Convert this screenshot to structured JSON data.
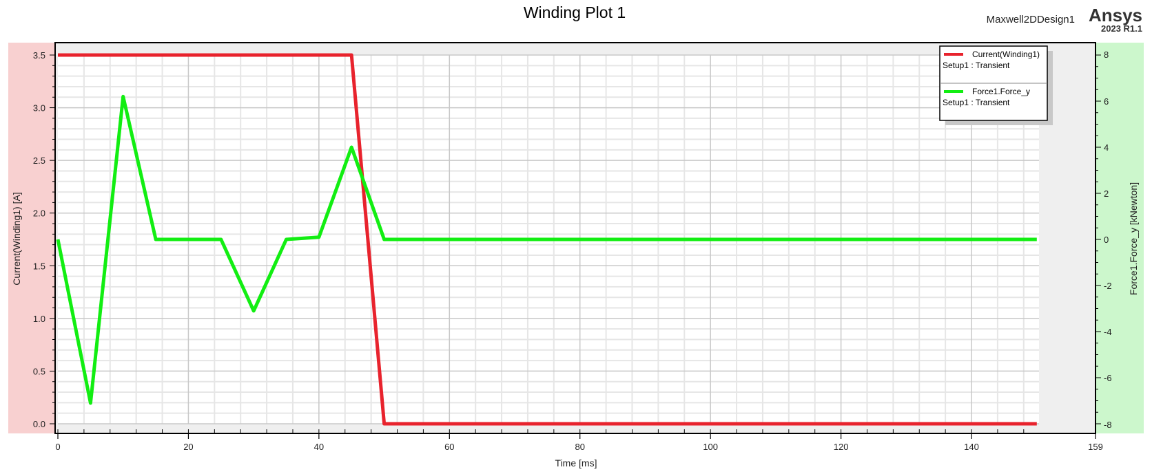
{
  "header": {
    "title": "Winding Plot 1",
    "design_name": "Maxwell2DDesign1",
    "brand": "Ansys",
    "version": "2023 R1.1"
  },
  "colors": {
    "current": "#e8232d",
    "force": "#12ee12",
    "left_band": "#f8d0d0",
    "right_band": "#ccf7cc"
  },
  "chart_data": {
    "type": "line",
    "xlabel": "Time [ms]",
    "ylabel_left": "Current(Winding1) [A]",
    "ylabel_right": "Force1.Force_y [kNewton]",
    "xlim": [
      0,
      159
    ],
    "ylim_left": [
      0.0,
      3.5
    ],
    "ylim_right": [
      -8,
      8
    ],
    "x_ticks": [
      "0",
      "20",
      "40",
      "60",
      "80",
      "100",
      "120",
      "140",
      "159"
    ],
    "y_left_ticks": [
      "0.0",
      "0.5",
      "1.0",
      "1.5",
      "2.0",
      "2.5",
      "3.0",
      "3.5"
    ],
    "y_right_ticks": [
      "-8",
      "-6",
      "-4",
      "-2",
      "0",
      "2",
      "4",
      "6",
      "8"
    ],
    "grid": true,
    "legend_position": "top-right",
    "series": [
      {
        "name": "Current(Winding1)",
        "setup": "Setup1 : Transient",
        "axis": "left",
        "x": [
          0,
          45,
          50,
          150
        ],
        "y": [
          3.5,
          3.5,
          0.0,
          0.0
        ]
      },
      {
        "name": "Force1.Force_y",
        "setup": "Setup1 : Transient",
        "axis": "right",
        "x": [
          0,
          5,
          10,
          15,
          25,
          30,
          35,
          40,
          45,
          50,
          150
        ],
        "y": [
          0,
          -7.1,
          6.2,
          0,
          0,
          -3.1,
          0,
          0.1,
          4.0,
          0,
          0
        ]
      }
    ]
  }
}
